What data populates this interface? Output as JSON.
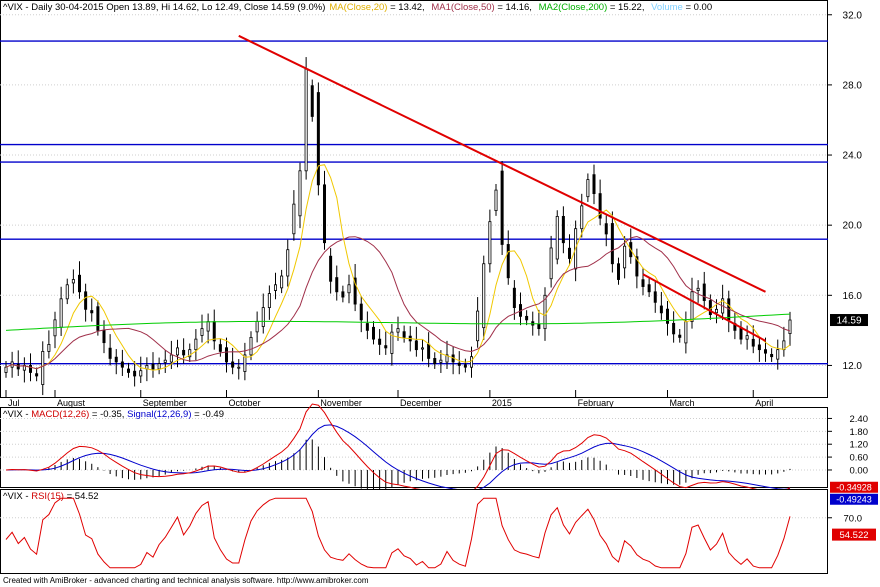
{
  "header": {
    "symbol": "^VIX - Daily 30-04-2015 Open 13.89, Hi 14.62, Lo 12.49, Close 14.59 (9.0%)",
    "ma20": "MA(Close,20)",
    "ma20_val": " = 13.42, ",
    "ma50": "MA1(Close,50)",
    "ma50_val": " = 14.16, ",
    "ma200": "MA2(Close,200)",
    "ma200_val": " = 15.22, ",
    "volume": "Volume",
    "volume_val": " = 0.00"
  },
  "macd_header": {
    "prefix": "^VIX - ",
    "macd": "MACD(12,26)",
    "macd_val": " = -0.35, ",
    "signal": "Signal(12,26,9)",
    "signal_val": " = -0.49"
  },
  "rsi_header": {
    "prefix": "^VIX - ",
    "rsi": "RSI(15)",
    "rsi_val": " = 54.52"
  },
  "footer": "Created with AmiBroker - advanced charting and technical analysis software. http://www.amibroker.com",
  "colors": {
    "ma20": "#f0c800",
    "ma50": "#a0304a",
    "ma200": "#00cc00",
    "trend": "#e00000",
    "hline": "#0000cc",
    "macd": "#e00000",
    "signal": "#0000cc",
    "rsi": "#e00000"
  },
  "chart_data": [
    {
      "type": "candlestick",
      "title": "^VIX - Daily 30-04-2015",
      "yticks": [
        "32.0",
        "28.0",
        "24.0",
        "20.0",
        "16.0",
        "12.0"
      ],
      "ylim": [
        10.2,
        32.5
      ],
      "month_labels": [
        "Jul",
        "August",
        "September",
        "October",
        "November",
        "December",
        "2015",
        "February",
        "March",
        "April"
      ],
      "last_close": "14.59",
      "horizontal_levels": [
        30.5,
        24.6,
        23.6,
        19.2,
        12.1
      ],
      "trend_lines": [
        {
          "from": {
            "bar": 38,
            "price": 30.8
          },
          "to": {
            "bar": 124,
            "price": 16.2
          }
        },
        {
          "from": {
            "bar": 104,
            "price": 17.2
          },
          "to": {
            "bar": 124,
            "price": 13.4
          }
        }
      ],
      "series": [
        {
          "name": "MA(Close,20)",
          "value": "13.42"
        },
        {
          "name": "MA1(Close,50)",
          "value": "14.16"
        },
        {
          "name": "MA2(Close,200)",
          "value": "15.22"
        }
      ],
      "closes": [
        11.9,
        12.2,
        11.8,
        12.0,
        11.6,
        11.4,
        12.8,
        13.2,
        14.6,
        15.8,
        16.6,
        16.9,
        16.2,
        15.2,
        15.0,
        14.0,
        13.3,
        12.4,
        12.2,
        11.9,
        11.6,
        11.4,
        11.7,
        12.0,
        11.8,
        12.1,
        12.3,
        12.6,
        13.0,
        12.6,
        12.9,
        13.5,
        14.1,
        14.5,
        13.4,
        12.8,
        12.2,
        11.9,
        11.9,
        12.6,
        13.6,
        14.5,
        15.3,
        16.1,
        16.6,
        17.1,
        18.6,
        21.2,
        23.1,
        28.9,
        26.2,
        22.3,
        19.0,
        16.8,
        16.2,
        15.9,
        16.6,
        15.5,
        14.6,
        14.0,
        13.5,
        13.2,
        13.0,
        13.9,
        14.1,
        13.6,
        13.4,
        12.9,
        13.0,
        12.4,
        12.1,
        12.3,
        12.6,
        12.2,
        12.0,
        11.9,
        12.5,
        15.1,
        17.8,
        20.2,
        22.0,
        18.9,
        17.0,
        15.3,
        14.8,
        14.6,
        14.3,
        14.1,
        16.0,
        18.7,
        20.5,
        19.0,
        18.1,
        19.8,
        21.1,
        22.6,
        21.8,
        20.4,
        19.5,
        17.8,
        16.9,
        18.8,
        18.2,
        17.1,
        16.5,
        16.2,
        15.6,
        15.0,
        14.4,
        13.8,
        13.6,
        14.5,
        16.2,
        16.4,
        15.7,
        14.9,
        15.2,
        15.8,
        14.6,
        14.0,
        13.5,
        13.7,
        13.1,
        12.9,
        12.7,
        12.5,
        12.9,
        13.4,
        14.59
      ]
    },
    {
      "type": "line",
      "title": "MACD(12,26)",
      "yticks": [
        "2.40",
        "1.80",
        "1.20",
        "0.60",
        "0.00"
      ],
      "ylim": [
        -0.7,
        2.7
      ],
      "value_labels": [
        "-0.34928",
        "-0.49243"
      ],
      "series": [
        {
          "name": "MACD(12,26)",
          "value": "-0.35"
        },
        {
          "name": "Signal(12,26,9)",
          "value": "-0.49"
        }
      ]
    },
    {
      "type": "line",
      "title": "RSI(15)",
      "yticks": [
        "70.0"
      ],
      "ylim": [
        22,
        90
      ],
      "value_label": "54.522",
      "series": [
        {
          "name": "RSI(15)",
          "value": "54.52"
        }
      ]
    }
  ]
}
